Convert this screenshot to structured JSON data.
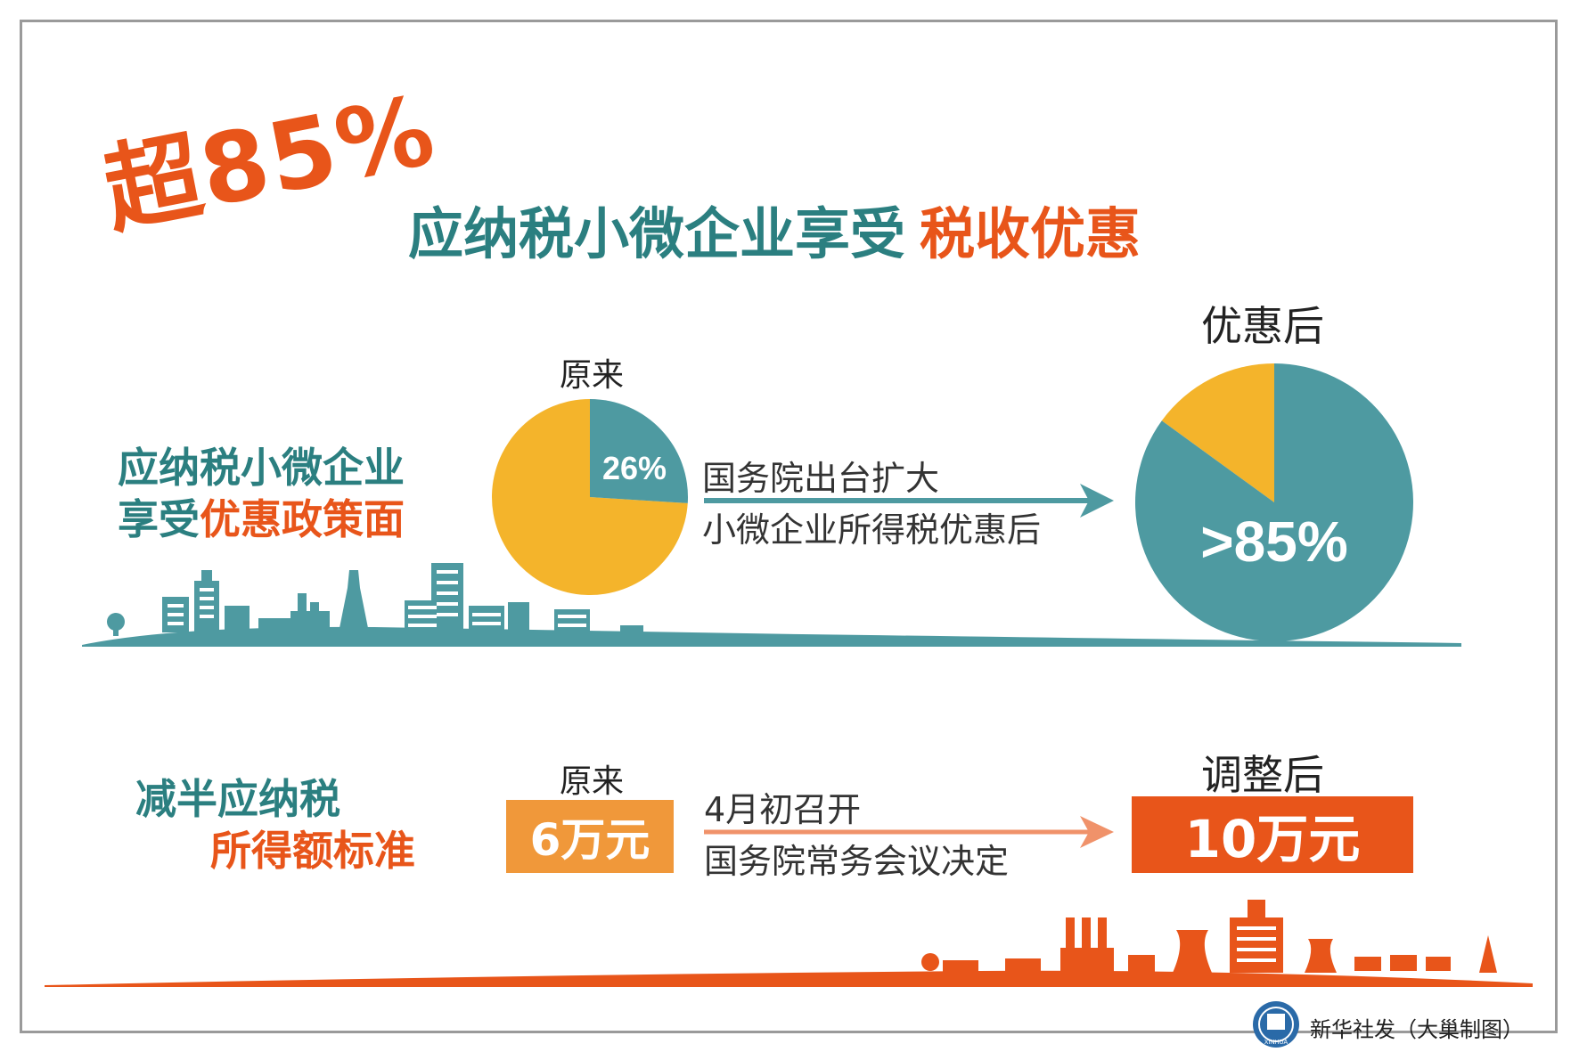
{
  "title": {
    "big": "超85%",
    "sub_main": "应纳税小微企业享受",
    "sub_highlight": "税收优惠"
  },
  "section1": {
    "left_line1": "应纳税小微企业",
    "left_line2_prefix": "享受",
    "left_line2_highlight": "优惠政策面",
    "before_label": "原来",
    "before_value": "26%",
    "after_label": "优惠后",
    "after_value": ">85%",
    "desc_line1": "国务院出台扩大",
    "desc_line2": "小微企业所得税优惠后"
  },
  "section2": {
    "left_line1": "减半应纳税",
    "left_line2": "所得额标准",
    "before_label": "原来",
    "before_value": "6万元",
    "after_label": "调整后",
    "after_value": "10万元",
    "desc_line1": "4月初召开",
    "desc_line2": "国务院常务会议决定"
  },
  "pies": {
    "before_fraction": 0.26,
    "after_fraction": 0.85
  },
  "colors": {
    "teal": "#4e9aa1",
    "teal_text": "#2b7f80",
    "yellow": "#f4b42b",
    "orange": "#e8551a",
    "orange_light": "#f0983a",
    "arrow_orange": "#f0926a"
  },
  "footer": {
    "credit": "新华社发（大巢制图）",
    "logo_text": "XINHUA"
  }
}
